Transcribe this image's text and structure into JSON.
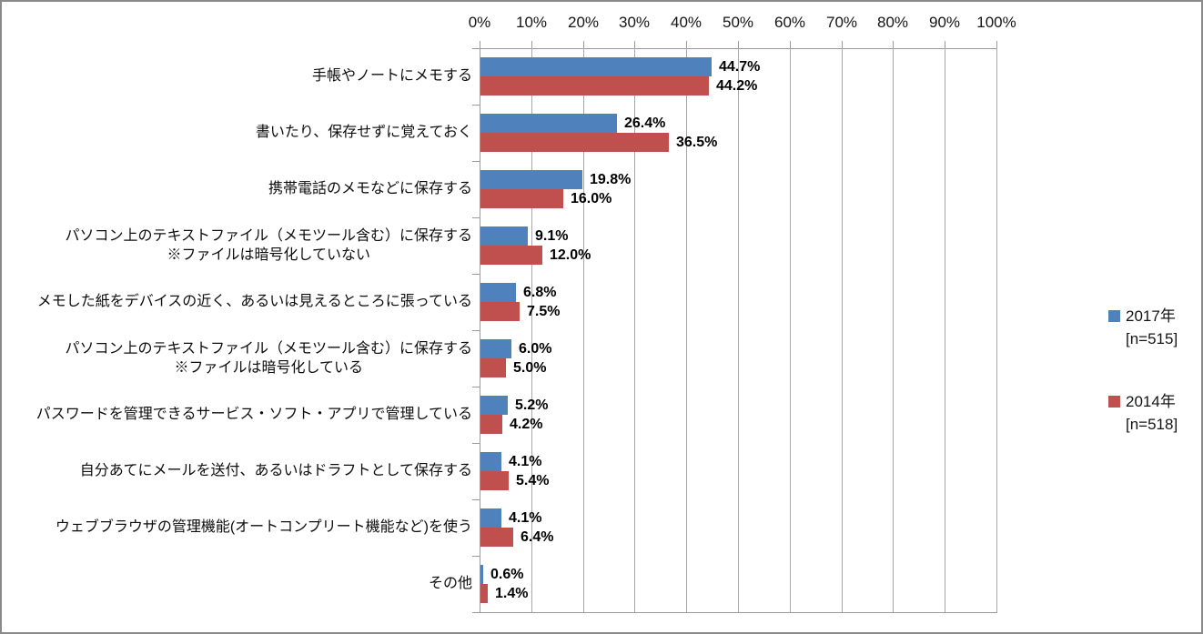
{
  "chart_data": {
    "type": "bar",
    "orientation": "horizontal",
    "title": "",
    "xlabel": "",
    "ylabel": "",
    "xlim": [
      0,
      100
    ],
    "grid": true,
    "legend_position": "right",
    "x_ticks": [
      "0%",
      "10%",
      "20%",
      "30%",
      "40%",
      "50%",
      "60%",
      "70%",
      "80%",
      "90%",
      "100%"
    ],
    "categories": [
      "手帳やノートにメモする",
      "書いたり、保存せずに覚えておく",
      "携帯電話のメモなどに保存する",
      "パソコン上のテキストファイル（メモツール含む）に保存する\n※ファイルは暗号化していない",
      "メモした紙をデバイスの近く、あるいは見えるところに張っている",
      "パソコン上のテキストファイル（メモツール含む）に保存する\n※ファイルは暗号化している",
      "パスワードを管理できるサービス・ソフト・アプリで管理している",
      "自分あてにメールを送付、あるいはドラフトとして保存する",
      "ウェブブラウザの管理機能(オートコンプリート機能など)を使う",
      "その他"
    ],
    "series": [
      {
        "name": "2017年",
        "sample": "[n=515]",
        "color": "#4F81BD",
        "values": [
          44.7,
          26.4,
          19.8,
          9.1,
          6.8,
          6.0,
          5.2,
          4.1,
          4.1,
          0.6
        ],
        "labels": [
          "44.7%",
          "26.4%",
          "19.8%",
          "9.1%",
          "6.8%",
          "6.0%",
          "5.2%",
          "4.1%",
          "4.1%",
          "0.6%"
        ]
      },
      {
        "name": "2014年",
        "sample": "[n=518]",
        "color": "#C0504D",
        "values": [
          44.2,
          36.5,
          16.0,
          12.0,
          7.5,
          5.0,
          4.2,
          5.4,
          6.4,
          1.4
        ],
        "labels": [
          "44.2%",
          "36.5%",
          "16.0%",
          "12.0%",
          "7.5%",
          "5.0%",
          "4.2%",
          "5.4%",
          "6.4%",
          "1.4%"
        ]
      }
    ]
  }
}
